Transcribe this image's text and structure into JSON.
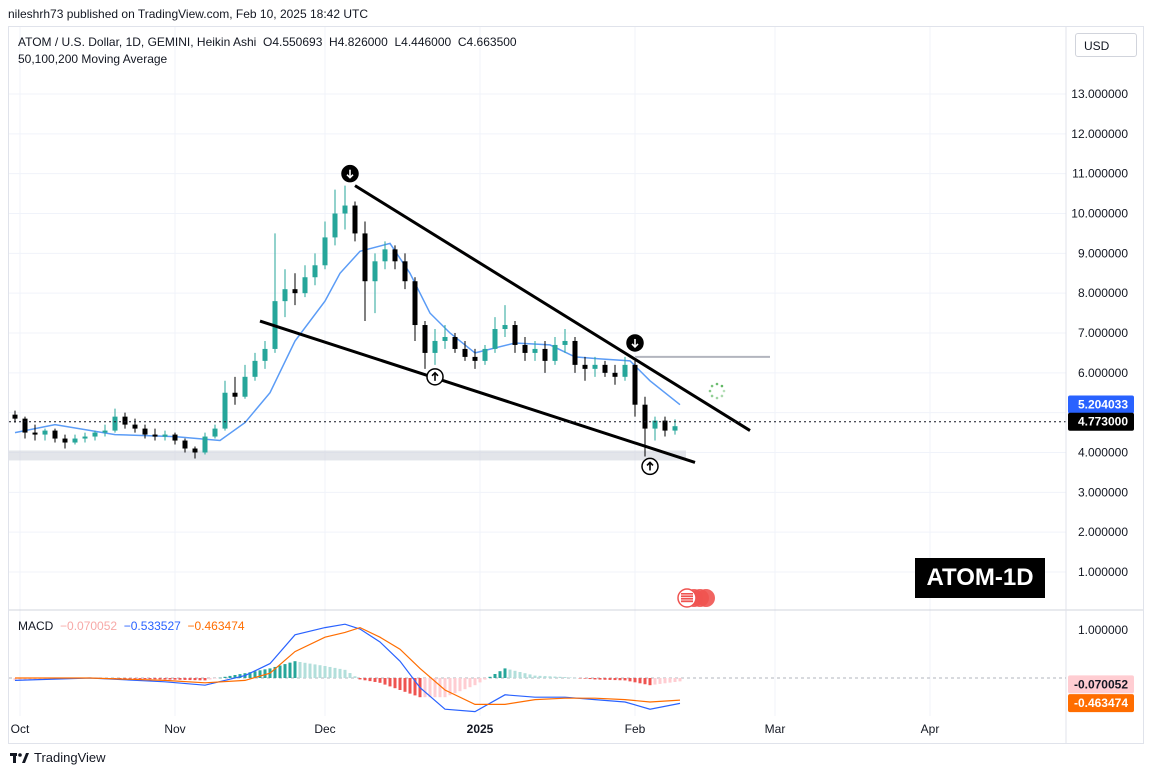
{
  "attribution": "nileshrh73 published on TradingView.com, Feb 10, 2025 18:42 UTC",
  "symbol_legend": {
    "name": "ATOM / U.S. Dollar, 1D, GEMINI, Heikin Ashi",
    "open_label": "O",
    "open": "4.550693",
    "high_label": "H",
    "high": "4.826000",
    "low_label": "L",
    "low": "4.446000",
    "close_label": "C",
    "close": "4.663500"
  },
  "ma_legend": "50,100,200 Moving Average",
  "currency_button": "USD",
  "watermark_label": "ATOM-1D",
  "price_badges": {
    "ma": "5.204033",
    "last": "4.773000"
  },
  "macd_legend": {
    "name": "MACD",
    "hist": "−0.070052",
    "macd": "−0.533527",
    "signal": "−0.463474"
  },
  "macd_badges": {
    "hist": "-0.070052",
    "signal": "-0.463474"
  },
  "footer_brand": "TradingView",
  "colors": {
    "up": "#26a69a",
    "down": "#000000",
    "ma": "#5b9cf6",
    "macd": "#2962ff",
    "signal": "#ff6d00",
    "hist_up": "#26a69a",
    "hist_down": "#ef5350",
    "badge_ma": "#2962ff"
  },
  "chart_data": {
    "type": "candlestick",
    "style": "Heikin Ashi",
    "timeframe": "1D",
    "y_ticks": [
      "13.000000",
      "12.000000",
      "11.000000",
      "10.000000",
      "9.000000",
      "8.000000",
      "7.000000",
      "6.000000",
      "5.000000",
      "4.000000",
      "3.000000",
      "2.000000",
      "1.000000"
    ],
    "y_tick_values": [
      13,
      12,
      11,
      10,
      9,
      8,
      7,
      6,
      5,
      4,
      3,
      2,
      1
    ],
    "x_ticks": [
      "Oct",
      "Nov",
      "Dec",
      "2025",
      "Feb",
      "Mar",
      "Apr"
    ],
    "x_tick_dates": [
      "2024-10-01",
      "2024-11-01",
      "2024-12-01",
      "2025-01-01",
      "2025-02-01",
      "2025-03-01",
      "2025-04-01"
    ],
    "last_price": 4.773,
    "support_zone": [
      3.8,
      4.05
    ],
    "resistance_line": {
      "from": "2025-02-01",
      "to": "2025-02-28",
      "price": 6.4
    },
    "wedge_upper": {
      "from_date": "2024-12-07",
      "from_price": 10.7,
      "to_date": "2025-02-24",
      "to_price": 4.55
    },
    "wedge_lower": {
      "from_date": "2024-11-18",
      "from_price": 7.3,
      "to_date": "2025-02-13",
      "to_price": 3.75
    },
    "markers": [
      {
        "type": "down",
        "date": "2024-12-06",
        "price": 11.0
      },
      {
        "type": "up",
        "date": "2024-12-23",
        "price": 5.9
      },
      {
        "type": "down",
        "date": "2025-02-01",
        "price": 6.75
      },
      {
        "type": "up",
        "date": "2025-02-04",
        "price": 3.65
      }
    ],
    "ma_series": {
      "name": "Moving Average",
      "dates": [
        "2024-09-30",
        "2024-10-08",
        "2024-10-20",
        "2024-11-01",
        "2024-11-10",
        "2024-11-15",
        "2024-11-20",
        "2024-11-25",
        "2024-12-01",
        "2024-12-04",
        "2024-12-08",
        "2024-12-14",
        "2024-12-18",
        "2024-12-22",
        "2024-12-26",
        "2024-12-31",
        "2025-01-08",
        "2025-01-15",
        "2025-01-20",
        "2025-01-25",
        "2025-01-31",
        "2025-02-04",
        "2025-02-10"
      ],
      "values": [
        4.5,
        4.7,
        4.45,
        4.4,
        4.3,
        4.75,
        5.5,
        6.8,
        7.8,
        8.5,
        9.05,
        9.25,
        8.5,
        7.5,
        7.0,
        6.5,
        6.75,
        6.7,
        6.4,
        6.35,
        6.3,
        5.8,
        5.2
      ]
    },
    "candles": [
      {
        "date": "2024-09-30",
        "open": 4.95,
        "high": 5.05,
        "low": 4.75,
        "close": 4.85
      },
      {
        "date": "2024-10-02",
        "open": 4.85,
        "high": 4.9,
        "low": 4.35,
        "close": 4.5
      },
      {
        "date": "2024-10-04",
        "open": 4.5,
        "high": 4.7,
        "low": 4.3,
        "close": 4.45
      },
      {
        "date": "2024-10-06",
        "open": 4.45,
        "high": 4.6,
        "low": 4.3,
        "close": 4.55
      },
      {
        "date": "2024-10-08",
        "open": 4.55,
        "high": 4.6,
        "low": 4.25,
        "close": 4.35
      },
      {
        "date": "2024-10-10",
        "open": 4.35,
        "high": 4.45,
        "low": 4.1,
        "close": 4.25
      },
      {
        "date": "2024-10-12",
        "open": 4.25,
        "high": 4.45,
        "low": 4.2,
        "close": 4.35
      },
      {
        "date": "2024-10-14",
        "open": 4.35,
        "high": 4.5,
        "low": 4.25,
        "close": 4.4
      },
      {
        "date": "2024-10-16",
        "open": 4.4,
        "high": 4.55,
        "low": 4.3,
        "close": 4.5
      },
      {
        "date": "2024-10-18",
        "open": 4.5,
        "high": 4.7,
        "low": 4.4,
        "close": 4.55
      },
      {
        "date": "2024-10-20",
        "open": 4.55,
        "high": 5.1,
        "low": 4.5,
        "close": 4.9
      },
      {
        "date": "2024-10-22",
        "open": 4.9,
        "high": 5.0,
        "low": 4.6,
        "close": 4.7
      },
      {
        "date": "2024-10-24",
        "open": 4.7,
        "high": 4.85,
        "low": 4.5,
        "close": 4.6
      },
      {
        "date": "2024-10-26",
        "open": 4.6,
        "high": 4.7,
        "low": 4.35,
        "close": 4.45
      },
      {
        "date": "2024-10-28",
        "open": 4.45,
        "high": 4.6,
        "low": 4.3,
        "close": 4.4
      },
      {
        "date": "2024-10-30",
        "open": 4.4,
        "high": 4.55,
        "low": 4.3,
        "close": 4.45
      },
      {
        "date": "2024-11-01",
        "open": 4.45,
        "high": 4.5,
        "low": 4.2,
        "close": 4.3
      },
      {
        "date": "2024-11-03",
        "open": 4.3,
        "high": 4.35,
        "low": 4.0,
        "close": 4.1
      },
      {
        "date": "2024-11-05",
        "open": 4.1,
        "high": 4.15,
        "low": 3.85,
        "close": 4.0
      },
      {
        "date": "2024-11-07",
        "open": 4.0,
        "high": 4.5,
        "low": 3.95,
        "close": 4.4
      },
      {
        "date": "2024-11-09",
        "open": 4.4,
        "high": 4.7,
        "low": 4.35,
        "close": 4.6
      },
      {
        "date": "2024-11-11",
        "open": 4.6,
        "high": 5.8,
        "low": 4.55,
        "close": 5.5
      },
      {
        "date": "2024-11-13",
        "open": 5.5,
        "high": 5.9,
        "low": 5.2,
        "close": 5.4
      },
      {
        "date": "2024-11-15",
        "open": 5.4,
        "high": 6.2,
        "low": 5.35,
        "close": 5.9
      },
      {
        "date": "2024-11-17",
        "open": 5.9,
        "high": 6.5,
        "low": 5.8,
        "close": 6.3
      },
      {
        "date": "2024-11-19",
        "open": 6.3,
        "high": 6.8,
        "low": 6.1,
        "close": 6.6
      },
      {
        "date": "2024-11-21",
        "open": 6.6,
        "high": 9.5,
        "low": 6.5,
        "close": 7.8
      },
      {
        "date": "2024-11-23",
        "open": 7.8,
        "high": 8.6,
        "low": 7.4,
        "close": 8.1
      },
      {
        "date": "2024-11-25",
        "open": 8.1,
        "high": 8.5,
        "low": 7.7,
        "close": 8.0
      },
      {
        "date": "2024-11-27",
        "open": 8.0,
        "high": 8.7,
        "low": 7.9,
        "close": 8.4
      },
      {
        "date": "2024-11-29",
        "open": 8.4,
        "high": 9.0,
        "low": 8.2,
        "close": 8.7
      },
      {
        "date": "2024-12-01",
        "open": 8.7,
        "high": 9.8,
        "low": 8.6,
        "close": 9.4
      },
      {
        "date": "2024-12-03",
        "open": 9.4,
        "high": 10.6,
        "low": 9.2,
        "close": 10.0
      },
      {
        "date": "2024-12-05",
        "open": 10.0,
        "high": 10.7,
        "low": 9.6,
        "close": 10.2
      },
      {
        "date": "2024-12-07",
        "open": 10.2,
        "high": 10.3,
        "low": 9.3,
        "close": 9.5
      },
      {
        "date": "2024-12-09",
        "open": 9.5,
        "high": 9.8,
        "low": 7.3,
        "close": 8.3
      },
      {
        "date": "2024-12-11",
        "open": 8.3,
        "high": 9.0,
        "low": 7.5,
        "close": 8.8
      },
      {
        "date": "2024-12-13",
        "open": 8.8,
        "high": 9.3,
        "low": 8.6,
        "close": 9.1
      },
      {
        "date": "2024-12-15",
        "open": 9.1,
        "high": 9.2,
        "low": 8.6,
        "close": 8.8
      },
      {
        "date": "2024-12-17",
        "open": 8.8,
        "high": 9.0,
        "low": 8.1,
        "close": 8.3
      },
      {
        "date": "2024-12-19",
        "open": 8.3,
        "high": 8.4,
        "low": 6.8,
        "close": 7.2
      },
      {
        "date": "2024-12-21",
        "open": 7.2,
        "high": 7.3,
        "low": 6.1,
        "close": 6.5
      },
      {
        "date": "2024-12-23",
        "open": 6.5,
        "high": 7.1,
        "low": 6.2,
        "close": 6.8
      },
      {
        "date": "2024-12-25",
        "open": 6.8,
        "high": 7.2,
        "low": 6.6,
        "close": 6.9
      },
      {
        "date": "2024-12-27",
        "open": 6.9,
        "high": 7.0,
        "low": 6.5,
        "close": 6.6
      },
      {
        "date": "2024-12-29",
        "open": 6.6,
        "high": 6.8,
        "low": 6.3,
        "close": 6.4
      },
      {
        "date": "2024-12-31",
        "open": 6.4,
        "high": 6.6,
        "low": 6.1,
        "close": 6.3
      },
      {
        "date": "2025-01-02",
        "open": 6.3,
        "high": 6.7,
        "low": 6.2,
        "close": 6.6
      },
      {
        "date": "2025-01-04",
        "open": 6.6,
        "high": 7.4,
        "low": 6.5,
        "close": 7.1
      },
      {
        "date": "2025-01-06",
        "open": 7.1,
        "high": 7.7,
        "low": 6.9,
        "close": 7.2
      },
      {
        "date": "2025-01-08",
        "open": 7.2,
        "high": 7.3,
        "low": 6.5,
        "close": 6.7
      },
      {
        "date": "2025-01-10",
        "open": 6.7,
        "high": 6.9,
        "low": 6.3,
        "close": 6.5
      },
      {
        "date": "2025-01-12",
        "open": 6.5,
        "high": 6.8,
        "low": 6.3,
        "close": 6.6
      },
      {
        "date": "2025-01-14",
        "open": 6.6,
        "high": 6.8,
        "low": 6.0,
        "close": 6.3
      },
      {
        "date": "2025-01-16",
        "open": 6.3,
        "high": 6.9,
        "low": 6.2,
        "close": 6.7
      },
      {
        "date": "2025-01-18",
        "open": 6.7,
        "high": 7.1,
        "low": 6.5,
        "close": 6.8
      },
      {
        "date": "2025-01-20",
        "open": 6.8,
        "high": 6.9,
        "low": 6.0,
        "close": 6.2
      },
      {
        "date": "2025-01-22",
        "open": 6.2,
        "high": 6.4,
        "low": 5.8,
        "close": 6.1
      },
      {
        "date": "2025-01-24",
        "open": 6.1,
        "high": 6.4,
        "low": 5.9,
        "close": 6.2
      },
      {
        "date": "2025-01-26",
        "open": 6.2,
        "high": 6.3,
        "low": 5.9,
        "close": 6.0
      },
      {
        "date": "2025-01-28",
        "open": 6.0,
        "high": 6.2,
        "low": 5.7,
        "close": 5.9
      },
      {
        "date": "2025-01-30",
        "open": 5.9,
        "high": 6.4,
        "low": 5.8,
        "close": 6.2
      },
      {
        "date": "2025-02-01",
        "open": 6.2,
        "high": 6.3,
        "low": 4.9,
        "close": 5.2
      },
      {
        "date": "2025-02-03",
        "open": 5.2,
        "high": 5.4,
        "low": 3.9,
        "close": 4.6
      },
      {
        "date": "2025-02-05",
        "open": 4.6,
        "high": 4.9,
        "low": 4.3,
        "close": 4.8
      },
      {
        "date": "2025-02-07",
        "open": 4.8,
        "high": 4.9,
        "low": 4.4,
        "close": 4.55
      },
      {
        "date": "2025-02-09",
        "open": 4.55,
        "high": 4.83,
        "low": 4.45,
        "close": 4.66
      }
    ],
    "macd": {
      "y_ticks": [
        "1.000000"
      ],
      "y_tick_values": [
        1.0
      ],
      "dates": [
        "2024-09-30",
        "2024-10-15",
        "2024-10-30",
        "2024-11-07",
        "2024-11-15",
        "2024-11-20",
        "2024-11-25",
        "2024-12-01",
        "2024-12-05",
        "2024-12-08",
        "2024-12-12",
        "2024-12-16",
        "2024-12-20",
        "2024-12-25",
        "2024-12-31",
        "2025-01-06",
        "2025-01-12",
        "2025-01-18",
        "2025-01-24",
        "2025-01-30",
        "2025-02-04",
        "2025-02-10"
      ],
      "macd_line": [
        -0.05,
        0.0,
        -0.08,
        -0.15,
        0.05,
        0.3,
        0.9,
        1.05,
        1.12,
        1.02,
        0.75,
        0.35,
        -0.2,
        -0.65,
        -0.7,
        -0.35,
        -0.4,
        -0.4,
        -0.45,
        -0.5,
        -0.65,
        -0.53
      ],
      "signal_line": [
        0.0,
        0.0,
        -0.05,
        -0.1,
        -0.05,
        0.1,
        0.55,
        0.85,
        0.95,
        1.05,
        0.85,
        0.6,
        0.2,
        -0.25,
        -0.55,
        -0.55,
        -0.45,
        -0.42,
        -0.42,
        -0.45,
        -0.5,
        -0.46
      ],
      "histogram": [
        -0.05,
        0.0,
        -0.03,
        -0.05,
        0.1,
        0.2,
        0.35,
        0.25,
        0.17,
        -0.03,
        -0.1,
        -0.25,
        -0.4,
        -0.4,
        -0.15,
        0.2,
        0.05,
        0.02,
        -0.03,
        -0.05,
        -0.15,
        -0.07
      ]
    }
  }
}
